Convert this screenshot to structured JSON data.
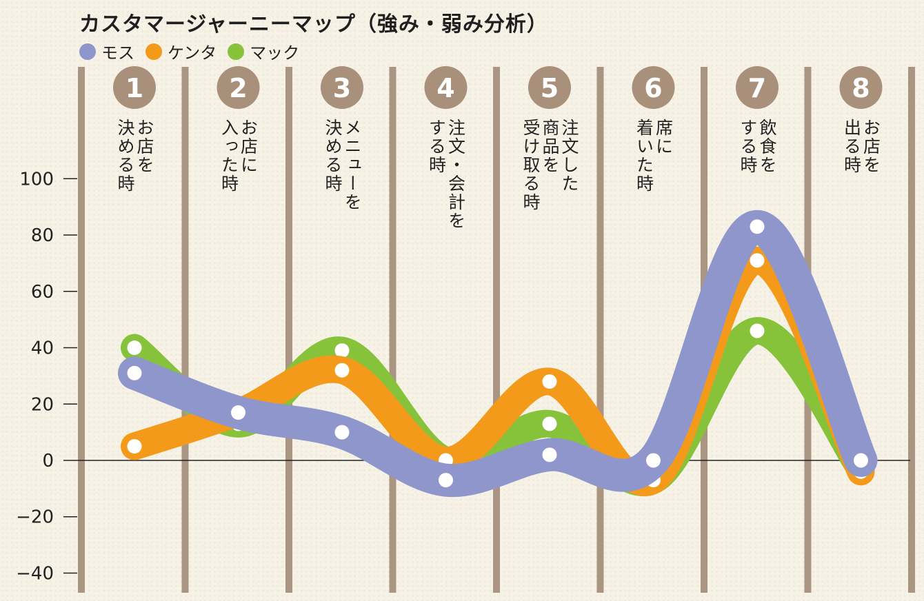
{
  "colors": {
    "moss": "#8f96cc",
    "kenta": "#f39a1a",
    "mac": "#86c33a",
    "pillar": "#a99581",
    "badge": "#a9907a"
  },
  "chart_data": {
    "type": "line",
    "title": "カスタマージャーニーマップ（強み・弱み分析）",
    "yticks": [
      "100",
      "80",
      "60",
      "40",
      "20",
      "−20",
      "−40"
    ],
    "zero_tick": "0",
    "ylim": [
      -45,
      100
    ],
    "categories": [
      {
        "num": "1",
        "label": "お店を\n決める時"
      },
      {
        "num": "2",
        "label": "お店に\n入った時"
      },
      {
        "num": "3",
        "label": "メニューを\n決める時"
      },
      {
        "num": "4",
        "label": "注文・会計を\nする時"
      },
      {
        "num": "5",
        "label": "注文した\n商品を\n受け取る時"
      },
      {
        "num": "6",
        "label": "席に\n着いた時"
      },
      {
        "num": "7",
        "label": "飲食を\nする時"
      },
      {
        "num": "8",
        "label": "お店を\n出る時"
      }
    ],
    "series": [
      {
        "name": "マック",
        "color": "#86c33a",
        "values": [
          40,
          13,
          39,
          0,
          13,
          -7,
          46,
          -3
        ]
      },
      {
        "name": "ケンタ",
        "color": "#f39a1a",
        "values": [
          5,
          17,
          32,
          0,
          28,
          -7,
          71,
          -4
        ]
      },
      {
        "name": "モス",
        "color": "#8f96cc",
        "values": [
          31,
          17,
          10,
          -7,
          2,
          0,
          83,
          0
        ]
      }
    ],
    "legend": [
      {
        "name": "モス",
        "color": "#8f96cc"
      },
      {
        "name": "ケンタ",
        "color": "#f39a1a"
      },
      {
        "name": "マック",
        "color": "#86c33a"
      }
    ]
  }
}
